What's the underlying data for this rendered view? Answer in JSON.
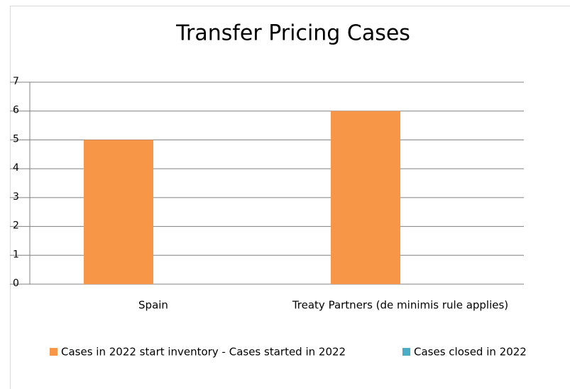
{
  "chart_data": {
    "type": "bar",
    "title": "Transfer Pricing Cases",
    "categories": [
      "Spain",
      "Treaty Partners (de minimis rule applies)"
    ],
    "series": [
      {
        "name": "Cases in 2022 start inventory - Cases started in 2022",
        "color": "#f79646",
        "values": [
          5,
          6
        ]
      },
      {
        "name": "Cases closed in 2022",
        "color": "#4bacc6",
        "values": [
          0,
          0
        ]
      }
    ],
    "ylim": [
      0,
      7
    ],
    "yticks": [
      0,
      1,
      2,
      3,
      4,
      5,
      6,
      7
    ],
    "grid": true,
    "legend": "bottom"
  }
}
